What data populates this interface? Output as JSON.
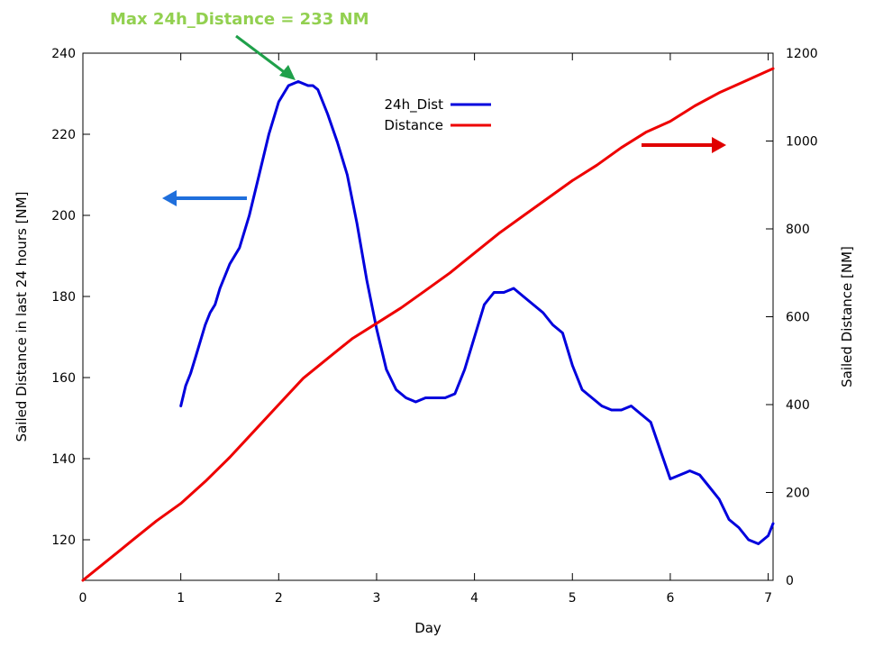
{
  "chart_data": {
    "type": "line",
    "xlabel": "Day",
    "ylabel_left": "Sailed Distance in last 24 hours [NM]",
    "ylabel_right": "Sailed Distance [NM]",
    "xlim": [
      0,
      7.05
    ],
    "ylim_left": [
      110,
      240
    ],
    "ylim_right": [
      0,
      1200
    ],
    "x_ticks": [
      "0",
      "1",
      "2",
      "3",
      "4",
      "5",
      "6",
      "7"
    ],
    "y_ticks_left": [
      "120",
      "140",
      "160",
      "180",
      "200",
      "220",
      "240"
    ],
    "y_ticks_right": [
      "0",
      "200",
      "400",
      "600",
      "800",
      "1000",
      "1200"
    ],
    "grid": false,
    "legend_position": "top-center",
    "annotation": "Max 24h_Distance = 233 NM",
    "colors": {
      "series_24h": "#0000dd",
      "series_distance": "#ee0000",
      "arrow_left": "#1f6fdc",
      "arrow_right": "#e00000",
      "annotation_text": "#92d050",
      "annotation_arrow": "#1fa04a"
    },
    "series": [
      {
        "name": "24h_Dist",
        "axis": "left",
        "x": [
          1.0,
          1.05,
          1.1,
          1.15,
          1.2,
          1.25,
          1.3,
          1.35,
          1.4,
          1.5,
          1.6,
          1.7,
          1.8,
          1.9,
          2.0,
          2.1,
          2.2,
          2.3,
          2.35,
          2.4,
          2.5,
          2.6,
          2.7,
          2.8,
          2.9,
          3.0,
          3.1,
          3.2,
          3.3,
          3.4,
          3.5,
          3.6,
          3.7,
          3.8,
          3.9,
          4.0,
          4.1,
          4.2,
          4.3,
          4.4,
          4.5,
          4.6,
          4.7,
          4.8,
          4.9,
          5.0,
          5.1,
          5.2,
          5.3,
          5.4,
          5.5,
          5.6,
          5.7,
          5.8,
          5.9,
          6.0,
          6.1,
          6.2,
          6.3,
          6.4,
          6.5,
          6.6,
          6.7,
          6.8,
          6.9,
          7.0,
          7.05
        ],
        "y": [
          153,
          158,
          161,
          165,
          169,
          173,
          176,
          178,
          182,
          188,
          192,
          200,
          210,
          220,
          228,
          232,
          233,
          232,
          232,
          231,
          225,
          218,
          210,
          198,
          184,
          172,
          162,
          157,
          155,
          154,
          155,
          155,
          155,
          156,
          162,
          170,
          178,
          181,
          181,
          182,
          180,
          178,
          176,
          173,
          171,
          163,
          157,
          155,
          153,
          152,
          152,
          153,
          151,
          149,
          142,
          135,
          136,
          137,
          136,
          133,
          130,
          125,
          123,
          120,
          119,
          121,
          124
        ]
      },
      {
        "name": "Distance",
        "axis": "right",
        "x": [
          0,
          0.25,
          0.5,
          0.75,
          1.0,
          1.25,
          1.5,
          1.75,
          2.0,
          2.25,
          2.5,
          2.75,
          3.0,
          3.25,
          3.5,
          3.75,
          4.0,
          4.25,
          4.5,
          4.75,
          5.0,
          5.25,
          5.5,
          5.75,
          6.0,
          6.25,
          6.5,
          6.75,
          7.0,
          7.05
        ],
        "y": [
          0,
          45,
          90,
          135,
          175,
          225,
          280,
          340,
          400,
          460,
          505,
          550,
          585,
          620,
          660,
          700,
          745,
          790,
          830,
          870,
          910,
          945,
          985,
          1020,
          1045,
          1080,
          1110,
          1135,
          1160,
          1165
        ]
      }
    ]
  }
}
